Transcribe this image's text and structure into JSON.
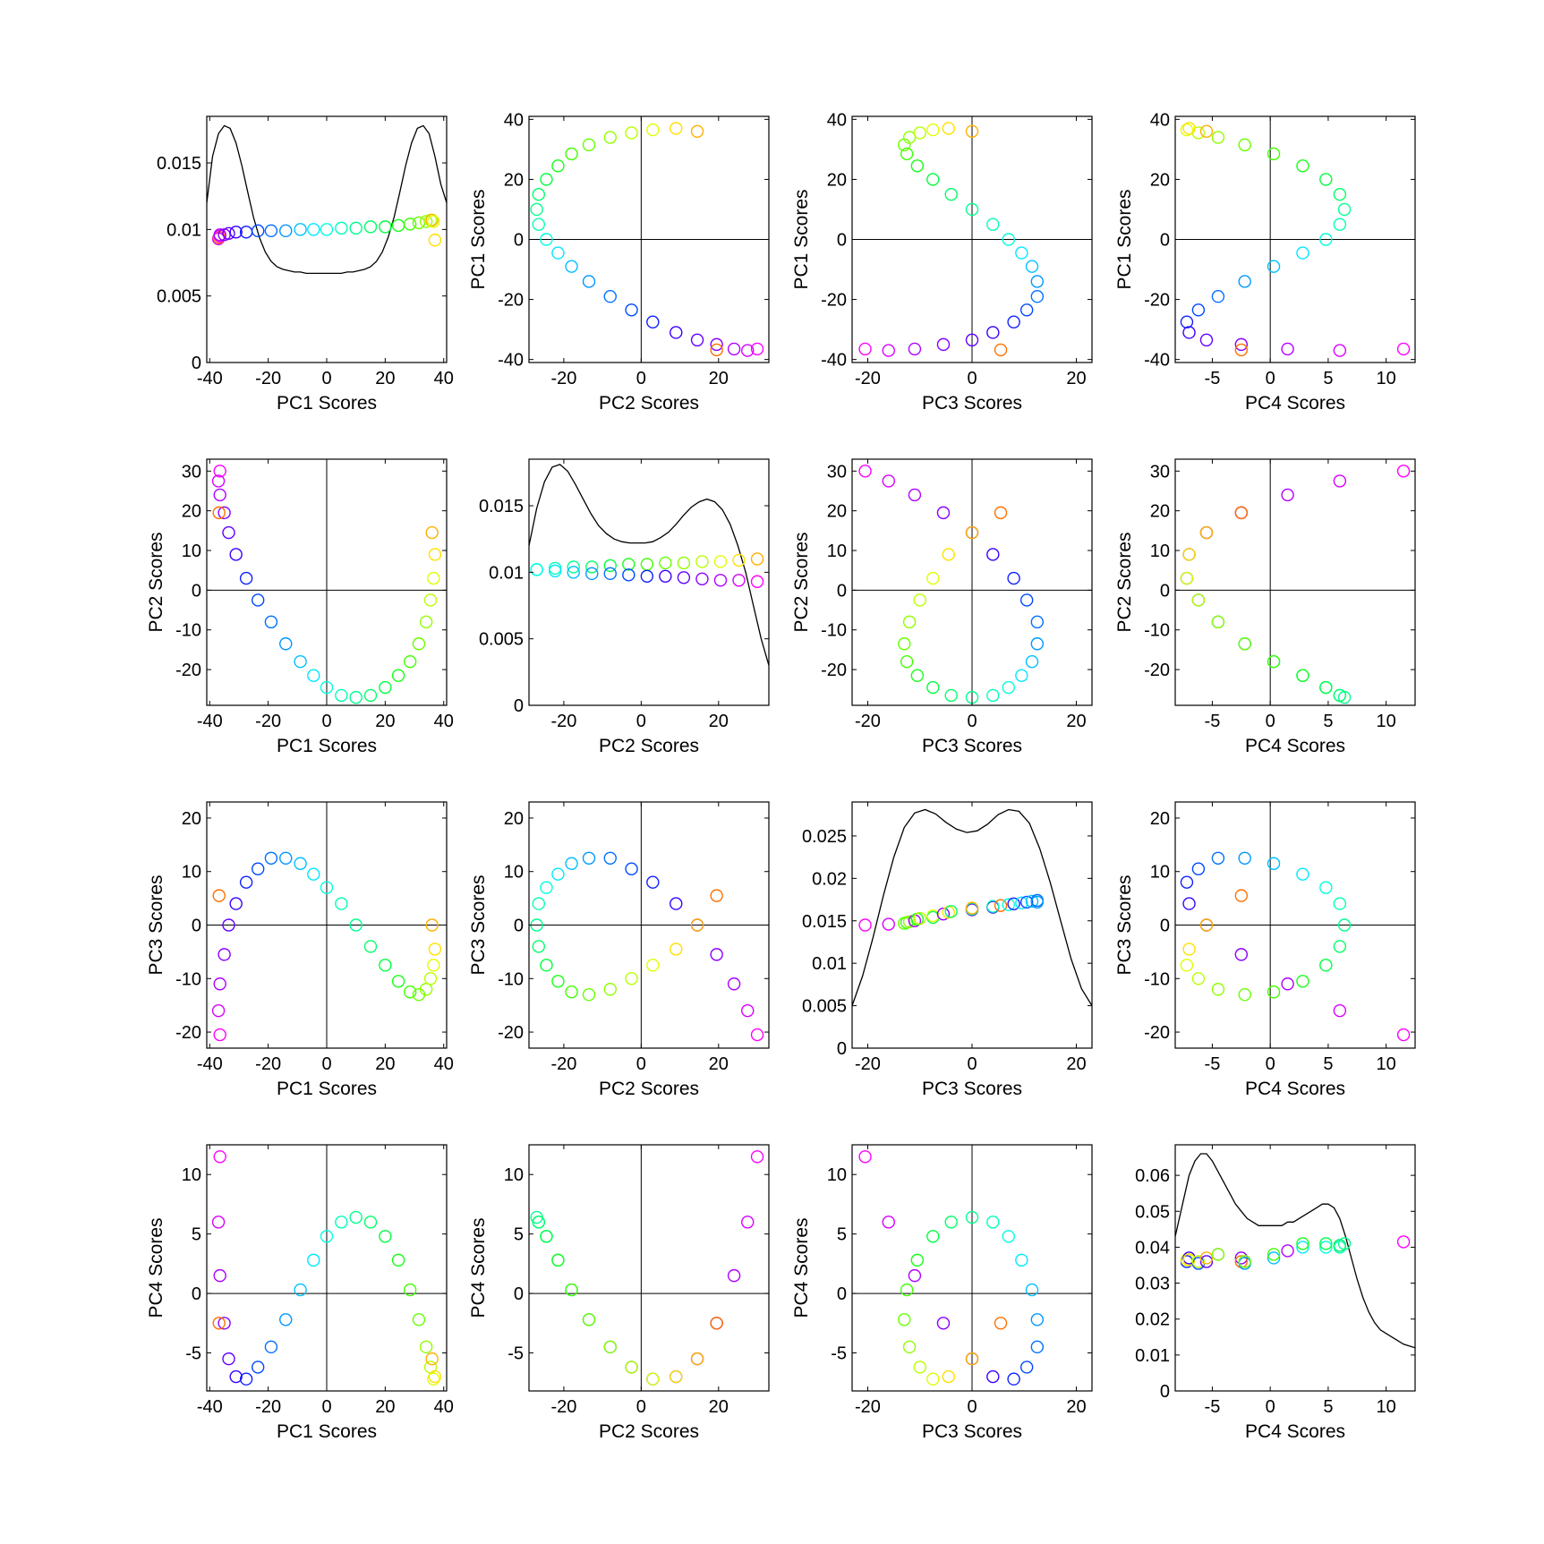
{
  "chart_data": {
    "type": "scatter",
    "layout": "4x4 scatter-plot matrix with density curves on the diagonal",
    "variables": [
      "PC1 Scores",
      "PC2 Scores",
      "PC3 Scores",
      "PC4 Scores"
    ],
    "axis_ranges": {
      "PC1 Scores": [
        -41,
        41
      ],
      "PC2 Scores": [
        -29,
        33
      ],
      "PC3 Scores": [
        -23,
        23
      ],
      "PC4 Scores": [
        -8.2,
        12.5
      ]
    },
    "ticks": {
      "PC1 Scores": [
        -40,
        -20,
        0,
        20,
        40
      ],
      "PC2 Scores": [
        -20,
        0,
        20
      ],
      "PC3 Scores": [
        -20,
        0,
        20
      ],
      "PC4 Scores": [
        -5,
        0,
        5,
        10
      ]
    },
    "row_ticks": {
      "PC1 Scores": [
        -40,
        -20,
        0,
        20,
        40
      ],
      "PC2 Scores": [
        -20,
        -10,
        0,
        10,
        20,
        30
      ],
      "PC3 Scores": [
        -20,
        -10,
        0,
        10,
        20
      ],
      "PC4 Scores": [
        -5,
        0,
        5,
        10
      ]
    },
    "diagonal": [
      {
        "variable": "PC1 Scores",
        "ylim": [
          0,
          0.0185
        ],
        "yticks": [
          0,
          0.005,
          0.01,
          0.015
        ],
        "ytick_labels": [
          "0",
          "0.005",
          "0.01",
          "0.015"
        ],
        "density_x": [
          -41,
          -39,
          -37,
          -35,
          -33,
          -31,
          -29,
          -27,
          -25,
          -23,
          -21,
          -19,
          -17,
          -15,
          -13,
          -11,
          -9,
          -7,
          -5,
          -3,
          -1,
          1,
          3,
          5,
          7,
          9,
          11,
          13,
          15,
          17,
          19,
          21,
          23,
          25,
          27,
          29,
          31,
          33,
          35,
          37,
          39,
          41
        ],
        "density_y": [
          0.012,
          0.0155,
          0.0172,
          0.0178,
          0.0176,
          0.0165,
          0.0148,
          0.0128,
          0.0109,
          0.0094,
          0.0083,
          0.0076,
          0.0072,
          0.007,
          0.0069,
          0.0068,
          0.0068,
          0.0067,
          0.0067,
          0.0067,
          0.0067,
          0.0067,
          0.0067,
          0.0067,
          0.0068,
          0.0068,
          0.0069,
          0.007,
          0.0072,
          0.0076,
          0.0083,
          0.0094,
          0.0109,
          0.0128,
          0.0148,
          0.0165,
          0.0176,
          0.0178,
          0.0172,
          0.0155,
          0.0134,
          0.012
        ],
        "points_y": [
          0.0093,
          0.0094,
          0.0095,
          0.0096,
          0.0096,
          0.0097,
          0.0098,
          0.0098,
          0.0099,
          0.0099,
          0.0099,
          0.01,
          0.01,
          0.01,
          0.0101,
          0.0101,
          0.0102,
          0.0102,
          0.0103,
          0.0104,
          0.0105,
          0.0106,
          0.0107,
          0.0107,
          0.0106,
          0.0092
        ]
      },
      {
        "variable": "PC2 Scores",
        "ylim": [
          0,
          0.0185
        ],
        "yticks": [
          0,
          0.005,
          0.01,
          0.015
        ],
        "ytick_labels": [
          "0",
          "0.005",
          "0.01",
          "0.015"
        ],
        "density_x": [
          -29,
          -27,
          -25,
          -23,
          -21,
          -19,
          -17,
          -15,
          -13,
          -11,
          -9,
          -7,
          -5,
          -3,
          -1,
          1,
          3,
          5,
          7,
          9,
          11,
          13,
          15,
          17,
          19,
          21,
          23,
          25,
          27,
          29,
          31,
          33
        ],
        "density_y": [
          0.012,
          0.0148,
          0.0168,
          0.0179,
          0.0181,
          0.0176,
          0.0166,
          0.0155,
          0.0144,
          0.0135,
          0.0129,
          0.0125,
          0.0123,
          0.0122,
          0.0122,
          0.0122,
          0.0123,
          0.0126,
          0.013,
          0.0136,
          0.0143,
          0.0149,
          0.0153,
          0.0155,
          0.0153,
          0.0147,
          0.0136,
          0.012,
          0.01,
          0.0075,
          0.005,
          0.003
        ],
        "points_y_upper": [
          0.0102,
          0.0103,
          0.0104,
          0.0104,
          0.0105,
          0.0106,
          0.0106,
          0.0107,
          0.0107,
          0.0108,
          0.0108,
          0.0109,
          0.011
        ],
        "points_y_lower": [
          0.0102,
          0.0101,
          0.01,
          0.0099,
          0.0099,
          0.0098,
          0.0097,
          0.0097,
          0.0096,
          0.0095,
          0.0094,
          0.0094,
          0.0093
        ]
      },
      {
        "variable": "PC3 Scores",
        "ylim": [
          0,
          0.029
        ],
        "yticks": [
          0,
          0.005,
          0.01,
          0.015,
          0.02,
          0.025
        ],
        "ytick_labels": [
          "0",
          "0.005",
          "0.01",
          "0.015",
          "0.02",
          "0.025"
        ],
        "density_x": [
          -23,
          -21,
          -19,
          -17,
          -15,
          -13,
          -11,
          -9,
          -7,
          -5,
          -3,
          -1,
          1,
          3,
          5,
          7,
          9,
          11,
          13,
          15,
          17,
          19,
          21,
          23
        ],
        "density_y": [
          0.005,
          0.0085,
          0.013,
          0.018,
          0.0225,
          0.026,
          0.0277,
          0.0281,
          0.0276,
          0.0266,
          0.0258,
          0.0254,
          0.0256,
          0.0264,
          0.0275,
          0.0281,
          0.0279,
          0.0265,
          0.0235,
          0.0195,
          0.015,
          0.0105,
          0.007,
          0.005
        ],
        "points_y": [
          0.0145,
          0.0146,
          0.0147,
          0.0148,
          0.0149,
          0.015,
          0.0152,
          0.0153,
          0.0154,
          0.0156,
          0.0158,
          0.016,
          0.0161,
          0.0163,
          0.0164,
          0.0165,
          0.0166,
          0.0167,
          0.0168,
          0.0169,
          0.017,
          0.0171,
          0.0172,
          0.0173,
          0.0174,
          0.0172
        ]
      },
      {
        "variable": "PC4 Scores",
        "ylim": [
          0,
          0.0685
        ],
        "yticks": [
          0,
          0.01,
          0.02,
          0.03,
          0.04,
          0.05,
          0.06
        ],
        "ytick_labels": [
          "0",
          "0.01",
          "0.02",
          "0.03",
          "0.04",
          "0.05",
          "0.06"
        ],
        "density_x": [
          -8.2,
          -7.5,
          -7,
          -6.5,
          -6,
          -5.5,
          -5,
          -4.5,
          -4,
          -3.5,
          -3,
          -2.5,
          -2,
          -1.5,
          -1,
          -0.5,
          0,
          0.5,
          1,
          1.5,
          2,
          2.5,
          3,
          3.5,
          4,
          4.5,
          5,
          5.5,
          6,
          6.5,
          7,
          7.5,
          8,
          8.5,
          9,
          9.5,
          10,
          10.5,
          11,
          11.5,
          12,
          12.5
        ],
        "density_y": [
          0.043,
          0.053,
          0.06,
          0.064,
          0.066,
          0.066,
          0.064,
          0.061,
          0.058,
          0.055,
          0.052,
          0.05,
          0.048,
          0.047,
          0.046,
          0.046,
          0.046,
          0.046,
          0.046,
          0.047,
          0.047,
          0.048,
          0.049,
          0.05,
          0.051,
          0.052,
          0.052,
          0.051,
          0.048,
          0.043,
          0.037,
          0.031,
          0.026,
          0.022,
          0.019,
          0.017,
          0.016,
          0.015,
          0.014,
          0.013,
          0.0125,
          0.012
        ],
        "points_y": [
          0.036,
          0.0365,
          0.037,
          0.0365,
          0.0355,
          0.036,
          0.036,
          0.037,
          0.038,
          0.038,
          0.037,
          0.036,
          0.0355,
          0.036,
          0.037,
          0.038,
          0.039,
          0.04,
          0.041,
          0.04,
          0.041,
          0.0405,
          0.04,
          0.0405,
          0.041,
          0.0415
        ]
      }
    ],
    "series_note": "26 observations arranged as a loop, colored along a hue gradient from magenta through blue, cyan, green, yellow to orange",
    "observations": {
      "PC1": [
        -36.5,
        -37.0,
        -36.5,
        -35.0,
        -33.5,
        -31.0,
        -27.5,
        -23.5,
        -19.0,
        -14.0,
        -9.0,
        -4.5,
        0.0,
        5.0,
        10.0,
        15.0,
        20.0,
        24.5,
        28.5,
        31.5,
        34.0,
        35.5,
        36.5,
        37.0,
        36.0,
        -36.8
      ],
      "PC2": [
        30.0,
        27.5,
        24.0,
        19.5,
        14.5,
        9.0,
        3.0,
        -2.5,
        -8.0,
        -13.5,
        -18.0,
        -21.5,
        -24.5,
        -26.5,
        -27.0,
        -26.5,
        -24.5,
        -21.5,
        -18.0,
        -13.5,
        -8.0,
        -2.5,
        3.0,
        9.0,
        14.5,
        19.5
      ],
      "PC3": [
        -20.5,
        -16.0,
        -11.0,
        -5.5,
        0.0,
        4.0,
        8.0,
        10.5,
        12.5,
        12.5,
        11.5,
        9.5,
        7.0,
        4.0,
        0.0,
        -4.0,
        -7.5,
        -10.5,
        -12.5,
        -13.0,
        -12.0,
        -10.0,
        -7.5,
        -4.5,
        0.0,
        5.5
      ],
      "PC4": [
        11.5,
        6.0,
        1.5,
        -2.5,
        -5.5,
        -7.0,
        -7.2,
        -6.2,
        -4.5,
        -2.2,
        0.3,
        2.8,
        4.8,
        6.0,
        6.4,
        6.0,
        4.8,
        2.8,
        0.3,
        -2.2,
        -4.5,
        -6.2,
        -7.2,
        -7.0,
        -5.5,
        -2.5
      ]
    },
    "colors": [
      "#ff00ff",
      "#d800ff",
      "#b000ff",
      "#8a00ff",
      "#6200ff",
      "#3a00ff",
      "#1020ff",
      "#0048ff",
      "#0070ff",
      "#0098ff",
      "#00c0ff",
      "#00e8ff",
      "#00ffe0",
      "#00ffb8",
      "#00ff90",
      "#00ff68",
      "#00ff40",
      "#18ff18",
      "#40ff00",
      "#68ff00",
      "#90ff00",
      "#b8ff00",
      "#e0ff00",
      "#ffe000",
      "#ffb000",
      "#ff7000"
    ],
    "zero_lines": true,
    "grid": false
  }
}
